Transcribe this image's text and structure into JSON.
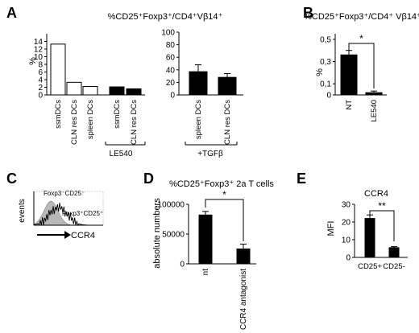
{
  "figure": {
    "panel_labels": [
      "A",
      "B",
      "C",
      "D",
      "E"
    ]
  },
  "chart_data": [
    {
      "panel": "A",
      "type": "bar",
      "title": "%CD25⁺Foxp3⁺/CD4⁺Vβ14⁺",
      "ylabel": "%",
      "ylim": [
        0,
        16
      ],
      "yticks": [
        "0",
        "2",
        "4",
        "6",
        "8",
        "10",
        "12",
        "14"
      ],
      "categories": [
        "ssmDCs",
        "CLN res DCs",
        "spleen DCs",
        "ssmDCs",
        "CLN res DCs"
      ],
      "values": [
        13.3,
        3.3,
        2.2,
        2.1,
        1.6
      ],
      "fills": [
        "open",
        "open",
        "open",
        "filled",
        "filled"
      ],
      "group_label": "LE540"
    },
    {
      "panel": "A",
      "type": "bar",
      "categories": [
        "spleen DCs",
        "CLN res DCs"
      ],
      "values": [
        37,
        28
      ],
      "errors": [
        11,
        6
      ],
      "ylim": [
        0,
        100
      ],
      "yticks": [
        "0",
        "20",
        "40",
        "60",
        "80",
        "100"
      ],
      "group_label": "+TGFβ"
    },
    {
      "panel": "B",
      "type": "bar",
      "title": "%CD25⁺Foxp3⁺/CD4⁺ Vβ14⁺",
      "ylabel": "%",
      "ylim": [
        0,
        0.55
      ],
      "yticks": [
        "0",
        "0,1",
        "0,3",
        "0,5"
      ],
      "categories": [
        "NT",
        "LE540"
      ],
      "values": [
        0.36,
        0.02
      ],
      "errors": [
        0.04,
        0.015
      ],
      "significance": "*"
    },
    {
      "panel": "C",
      "type": "area",
      "ylabel": "events",
      "xlabel": "CCR4",
      "series": [
        {
          "name": "Foxp3⁻CD25⁻",
          "fill": "#b8b8b8"
        },
        {
          "name": "Foxp3⁺CD25⁺",
          "fill": "none"
        }
      ]
    },
    {
      "panel": "D",
      "type": "bar",
      "title": "%CD25⁺Foxp3⁺ 2a T cells",
      "ylabel": "absolute numbers",
      "ylim": [
        0,
        100000
      ],
      "yticks": [
        "0",
        "50000",
        "100000"
      ],
      "categories": [
        "nt",
        "CCR4 antagonist"
      ],
      "values": [
        82000,
        25000
      ],
      "errors": [
        6000,
        8000
      ],
      "significance": "*"
    },
    {
      "panel": "E",
      "type": "bar",
      "title": "CCR4",
      "ylabel": "MFI",
      "ylim": [
        0,
        30
      ],
      "yticks": [
        "0",
        "10",
        "20",
        "30"
      ],
      "categories": [
        "CD25+",
        "CD25-"
      ],
      "values": [
        22,
        5.5
      ],
      "errors": [
        2,
        0.6
      ],
      "significance": "**"
    }
  ]
}
